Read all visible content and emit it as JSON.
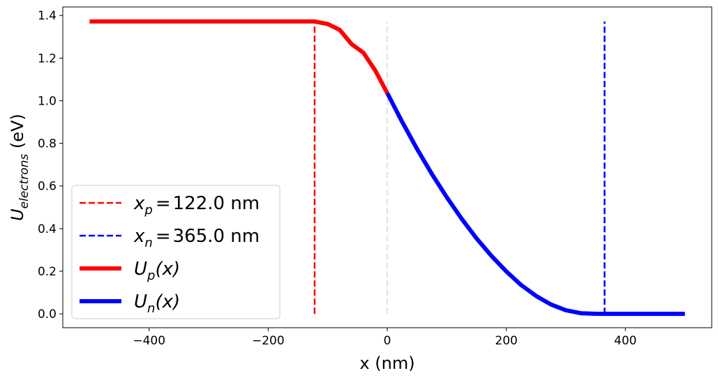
{
  "chart_data": {
    "type": "line",
    "xlabel": "x (nm)",
    "ylabel": {
      "main": "U",
      "sub": "electrons",
      "unit": " (eV)"
    },
    "xlim": [
      -545,
      545
    ],
    "ylim": [
      -0.065,
      1.44
    ],
    "xticks": [
      -400,
      -200,
      0,
      200,
      400
    ],
    "xtick_labels": [
      "−400",
      "−200",
      "0",
      "200",
      "400"
    ],
    "yticks": [
      0.0,
      0.2,
      0.4,
      0.6,
      0.8,
      1.0,
      1.2,
      1.4
    ],
    "ytick_labels": [
      "0.0",
      "0.2",
      "0.4",
      "0.6",
      "0.8",
      "1.0",
      "1.2",
      "1.4"
    ],
    "grid": false,
    "legend_placement": "lower-left",
    "vlines": [
      {
        "x": -122.0,
        "y_range": [
          0.0,
          1.372
        ],
        "color": "#ff0000",
        "style": "dashed",
        "legend_label": {
          "var": "x",
          "sub": "p",
          "value": "122.0 nm"
        }
      },
      {
        "x": 365.0,
        "y_range": [
          0.0,
          1.372
        ],
        "color": "#0000ff",
        "style": "dashed",
        "legend_label": {
          "var": "x",
          "sub": "n",
          "value": "365.0 nm"
        }
      },
      {
        "x": 0,
        "y_range": [
          0.0,
          1.372
        ],
        "color": "#e6e6e6",
        "style": "dashed"
      }
    ],
    "series": [
      {
        "name": "U_p(x)",
        "legend_label": {
          "var": "U",
          "sub": "p",
          "arg": "(x)"
        },
        "color": "#ff0000",
        "x": [
          -500,
          -400,
          -300,
          -200,
          -122,
          -100,
          -80,
          -60,
          -40,
          -20,
          0
        ],
        "y": [
          1.372,
          1.372,
          1.372,
          1.372,
          1.372,
          1.36,
          1.333,
          1.266,
          1.225,
          1.141,
          1.036
        ]
      },
      {
        "name": "U_n(x)",
        "legend_label": {
          "var": "U",
          "sub": "n",
          "arg": "(x)"
        },
        "color": "#0000ff",
        "x": [
          0,
          25,
          50,
          75,
          100,
          125,
          150,
          175,
          200,
          225,
          250,
          275,
          300,
          325,
          350,
          365,
          400,
          450,
          500
        ],
        "y": [
          1.036,
          0.901,
          0.774,
          0.656,
          0.547,
          0.446,
          0.354,
          0.272,
          0.199,
          0.135,
          0.084,
          0.044,
          0.017,
          0.003,
          0.0003,
          0.0,
          0.0,
          0.0,
          0.0
        ]
      }
    ]
  }
}
